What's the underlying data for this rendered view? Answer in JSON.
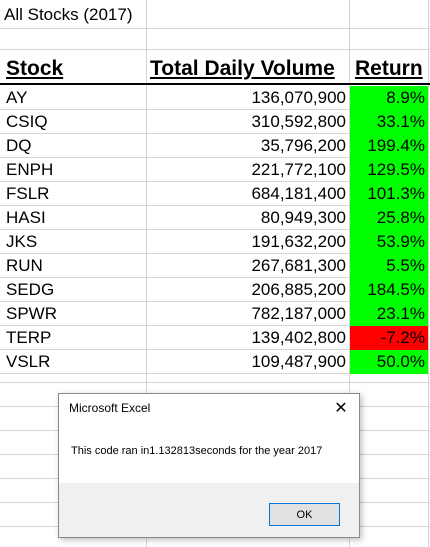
{
  "sheet": {
    "title": "All Stocks (2017)",
    "headers": {
      "ticker": "Stock",
      "volume": "Total Daily Volume",
      "return": "Return"
    },
    "positive_color": "#00ff00",
    "negative_color": "#ff0000",
    "rows": [
      {
        "ticker": "AY",
        "volume": "136,070,900",
        "return": "8.9%",
        "sign": "pos"
      },
      {
        "ticker": "CSIQ",
        "volume": "310,592,800",
        "return": "33.1%",
        "sign": "pos"
      },
      {
        "ticker": "DQ",
        "volume": "35,796,200",
        "return": "199.4%",
        "sign": "pos"
      },
      {
        "ticker": "ENPH",
        "volume": "221,772,100",
        "return": "129.5%",
        "sign": "pos"
      },
      {
        "ticker": "FSLR",
        "volume": "684,181,400",
        "return": "101.3%",
        "sign": "pos"
      },
      {
        "ticker": "HASI",
        "volume": "80,949,300",
        "return": "25.8%",
        "sign": "pos"
      },
      {
        "ticker": "JKS",
        "volume": "191,632,200",
        "return": "53.9%",
        "sign": "pos"
      },
      {
        "ticker": "RUN",
        "volume": "267,681,300",
        "return": "5.5%",
        "sign": "pos"
      },
      {
        "ticker": "SEDG",
        "volume": "206,885,200",
        "return": "184.5%",
        "sign": "pos"
      },
      {
        "ticker": "SPWR",
        "volume": "782,187,000",
        "return": "23.1%",
        "sign": "pos"
      },
      {
        "ticker": "TERP",
        "volume": "139,402,800",
        "return": "-7.2%",
        "sign": "neg"
      },
      {
        "ticker": "VSLR",
        "volume": "109,487,900",
        "return": "50.0%",
        "sign": "pos"
      }
    ]
  },
  "dialog": {
    "title": "Microsoft Excel",
    "close_icon": "close-icon",
    "close_glyph": "✕",
    "message": "This code ran in1.132813seconds for the year 2017",
    "ok_label": "OK"
  }
}
